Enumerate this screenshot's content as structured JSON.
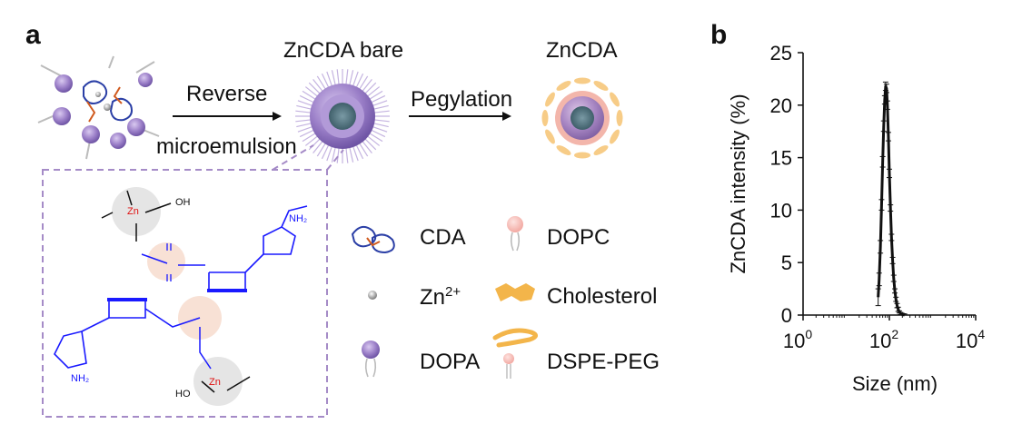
{
  "panels": {
    "a": {
      "letter": "a",
      "title_bare": "ZnCDA bare",
      "title_final": "ZnCDA",
      "step1_line1": "Reverse",
      "step1_line2": "microemulsion",
      "step2": "Pegylation",
      "structure_labels": {
        "zn_top": "Zn",
        "oh_top": "OH",
        "nh2_top": "NH₂",
        "zn_bottom": "Zn",
        "ho_bottom": "HO",
        "nh2_bottom": "NH₂"
      },
      "legend": [
        {
          "key": "cda",
          "label": "CDA"
        },
        {
          "key": "dopc",
          "label": "DOPC"
        },
        {
          "key": "zn",
          "label": "Zn",
          "sup": "2+"
        },
        {
          "key": "cholesterol",
          "label": "Cholesterol"
        },
        {
          "key": "dopa",
          "label": "DOPA"
        },
        {
          "key": "dspe",
          "label": "DSPE-PEG"
        }
      ],
      "colors": {
        "purple": "#9b7fc8",
        "dashed": "#a58bc7",
        "blue": "#1a1aff",
        "zn_red": "#e01010",
        "peach": "#f6d8c8",
        "gray": "#d9d9d9",
        "orange": "#f3b54a",
        "pink": "#f2b2ad"
      }
    },
    "b": {
      "letter": "b"
    }
  },
  "chart_data": {
    "type": "line",
    "xlabel": "Size (nm)",
    "ylabel": "ZnCDA intensity (%)",
    "xscale": "log",
    "xlim": [
      1,
      10000
    ],
    "ylim": [
      0,
      25
    ],
    "xticks": [
      {
        "base": "10",
        "exp": "0"
      },
      {
        "base": "10",
        "exp": "2"
      },
      {
        "base": "10",
        "exp": "4"
      }
    ],
    "yticks": [
      0,
      5,
      10,
      15,
      20,
      25
    ],
    "grid": false,
    "series": [
      {
        "x": [
          55,
          58,
          62,
          66,
          70,
          74,
          78,
          82,
          86,
          90,
          95,
          100,
          106,
          112,
          119,
          126,
          134,
          142,
          151,
          160,
          170,
          182,
          195,
          210,
          225
        ],
        "y": [
          1.7,
          3.4,
          6.5,
          10.5,
          14.6,
          18.0,
          20.5,
          21.8,
          21.6,
          20.0,
          17.0,
          13.5,
          10.2,
          7.4,
          5.2,
          3.5,
          2.3,
          1.5,
          0.9,
          0.55,
          0.3,
          0.15,
          0.07,
          0.03,
          0.0
        ],
        "err": [
          0.8,
          0.6,
          0.6,
          0.5,
          0.5,
          0.5,
          0.4,
          0.4,
          0.4,
          0.4,
          0.4,
          0.4,
          0.3,
          0.3,
          0.3,
          0.3,
          0.2,
          0.2,
          0.2,
          0.2,
          0.1,
          0.1,
          0.1,
          0.1,
          0.1
        ]
      }
    ]
  }
}
